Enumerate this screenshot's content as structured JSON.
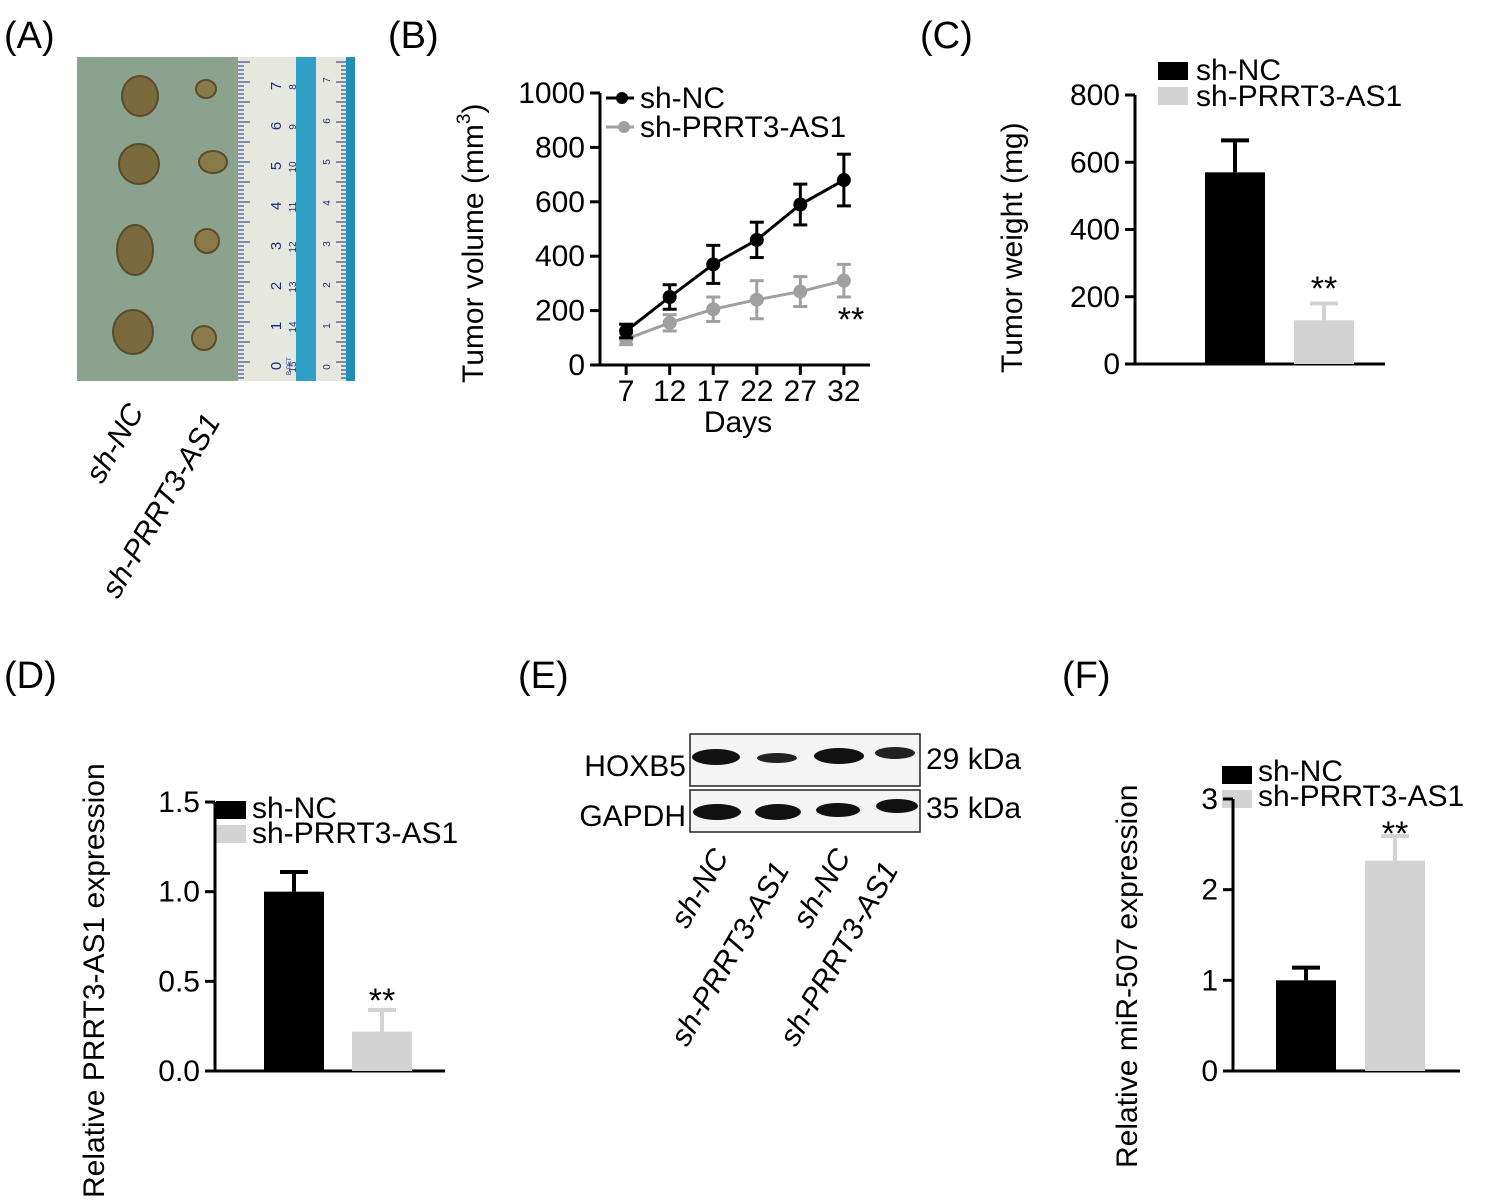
{
  "colors": {
    "black": "#000000",
    "gray_marker": "#a0a0a0",
    "gray_bar": "#d3d3d3",
    "photo_bg": "#8aa28e",
    "ruler": "#e6e8df",
    "ruler_blue": "#1f8fb6",
    "tumor": "#7a6a3e",
    "blot": "#111111"
  },
  "panel_labels": {
    "a": "(A)",
    "b": "(B)",
    "c": "(C)",
    "d": "(D)",
    "e": "(E)",
    "f": "(F)"
  },
  "panel_a": {
    "rows": 4,
    "ruler_numbers_left": [
      "7",
      "6",
      "5",
      "4",
      "3",
      "2",
      "1",
      "0"
    ],
    "ruler_numbers_right": [
      "8",
      "9",
      "10",
      "11",
      "12",
      "13",
      "14",
      "15"
    ],
    "ruler_numbers_strip": [
      "7",
      "6",
      "5",
      "4",
      "3",
      "2",
      "1",
      "0"
    ],
    "ruler_brand": "B-PET",
    "sample_labels": [
      "sh-NC",
      "sh-PRRT3-AS1"
    ]
  },
  "chart_data": [
    {
      "panel": "B",
      "type": "line",
      "ylabel": "Tumor volume (mm",
      "ylabel_sup": "3",
      "ylabel_end": ")",
      "xlabel": "Days",
      "x": [
        7,
        12,
        17,
        22,
        27,
        32
      ],
      "xticks": [
        "7",
        "12",
        "17",
        "22",
        "27",
        "32"
      ],
      "ylim": [
        0,
        1000
      ],
      "yticks": [
        0,
        200,
        400,
        600,
        800,
        1000
      ],
      "series": [
        {
          "name": "sh-NC",
          "color": "#000000",
          "values": [
            125,
            250,
            370,
            460,
            590,
            680
          ],
          "errors": [
            25,
            45,
            70,
            65,
            75,
            95
          ]
        },
        {
          "name": "sh-PRRT3-AS1",
          "color": "#a0a0a0",
          "values": [
            95,
            155,
            205,
            240,
            270,
            310
          ],
          "errors": [
            20,
            30,
            45,
            70,
            55,
            60
          ]
        }
      ],
      "annotations": [
        "**"
      ]
    },
    {
      "panel": "C",
      "type": "bar",
      "ylabel": "Tumor weight (mg)",
      "ylim": [
        0,
        800
      ],
      "yticks": [
        0,
        200,
        400,
        600,
        800
      ],
      "categories": [
        "sh-NC",
        "sh-PRRT3-AS1"
      ],
      "values": [
        570,
        130
      ],
      "errors": [
        95,
        50
      ],
      "colors": [
        "#000000",
        "#d3d3d3"
      ],
      "legend": [
        "sh-NC",
        "sh-PRRT3-AS1"
      ],
      "annotations": [
        "**"
      ]
    },
    {
      "panel": "D",
      "type": "bar",
      "ylabel": "Relative PRRT3-AS1 expression",
      "ylim": [
        0,
        1.5
      ],
      "yticks": [
        "0.0",
        "0.5",
        "1.0",
        "1.5"
      ],
      "categories": [
        "sh-NC",
        "sh-PRRT3-AS1"
      ],
      "values": [
        1.0,
        0.22
      ],
      "errors": [
        0.11,
        0.12
      ],
      "colors": [
        "#000000",
        "#d3d3d3"
      ],
      "legend": [
        "sh-NC",
        "sh-PRRT3-AS1"
      ],
      "annotations": [
        "**"
      ]
    },
    {
      "panel": "F",
      "type": "bar",
      "ylabel": "Relative miR-507 expression",
      "ylim": [
        0,
        3
      ],
      "yticks": [
        "0",
        "1",
        "2",
        "3"
      ],
      "categories": [
        "sh-NC",
        "sh-PRRT3-AS1"
      ],
      "values": [
        1.0,
        2.32
      ],
      "errors": [
        0.14,
        0.27
      ],
      "colors": [
        "#000000",
        "#d3d3d3"
      ],
      "legend": [
        "sh-NC",
        "sh-PRRT3-AS1"
      ],
      "annotations": [
        "**"
      ]
    }
  ],
  "panel_e": {
    "bands": [
      "HOXB5",
      "GAPDH"
    ],
    "weights": [
      "29 kDa",
      "35 kDa"
    ],
    "lanes": [
      "sh-NC",
      "sh-PRRT3-AS1",
      "sh-NC",
      "sh-PRRT3-AS1"
    ]
  }
}
